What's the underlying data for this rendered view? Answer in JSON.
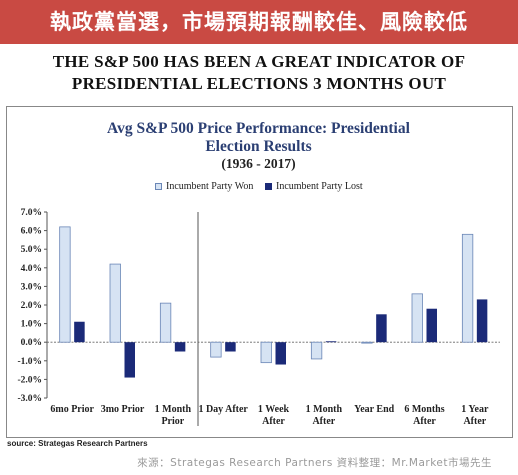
{
  "banner": {
    "title": "執政黨當選，市場預期報酬較佳、風險較低"
  },
  "headline": {
    "line1": "THE S&P 500 HAS BEEN A GREAT INDICATOR OF",
    "line2": "PRESIDENTIAL ELECTIONS 3 MONTHS OUT"
  },
  "source": "source: Strategas Research Partners",
  "footer": "來源：Strategas Research Partners 資料整理：Mr.Market市場先生",
  "colors": {
    "banner": "#c94a43",
    "won": "#d6e3f3",
    "won_border": "#6a86b6",
    "lost": "#1b2a78",
    "title": "#2b3f73"
  },
  "chart_data": {
    "type": "bar",
    "title": "Avg S&P 500 Price Performance: Presidential",
    "title_line2": "Election Results",
    "subtitle": "(1936 - 2017)",
    "categories": [
      "6mo Prior",
      "3mo Prior",
      "1 Month Prior",
      "1 Day After",
      "1 Week After",
      "1 Month After",
      "Year End",
      "6 Months After",
      "1 Year After"
    ],
    "category_lines": [
      [
        "6mo Prior"
      ],
      [
        "3mo Prior"
      ],
      [
        "1 Month",
        "Prior"
      ],
      [
        "1 Day After"
      ],
      [
        "1 Week",
        "After"
      ],
      [
        "1 Month",
        "After"
      ],
      [
        "Year End"
      ],
      [
        "6 Months",
        "After"
      ],
      [
        "1 Year",
        "After"
      ]
    ],
    "series": [
      {
        "name": "Incumbent Party Won",
        "values": [
          6.2,
          4.2,
          2.1,
          -0.8,
          -1.1,
          -0.9,
          -0.05,
          2.6,
          5.8
        ]
      },
      {
        "name": "Incumbent Party Lost",
        "values": [
          1.1,
          -1.9,
          -0.5,
          -0.5,
          -1.2,
          0.05,
          1.5,
          1.8,
          2.3
        ]
      }
    ],
    "ylim": [
      -3.0,
      7.0
    ],
    "yticks": [
      "7.0%",
      "6.0%",
      "5.0%",
      "4.0%",
      "3.0%",
      "2.0%",
      "1.0%",
      "0.0%",
      "-1.0%",
      "-2.0%",
      "-3.0%"
    ],
    "ytick_values": [
      7,
      6,
      5,
      4,
      3,
      2,
      1,
      0,
      -1,
      -2,
      -3
    ],
    "legend_position": "top",
    "divider_after_category": 2,
    "grid": false
  }
}
